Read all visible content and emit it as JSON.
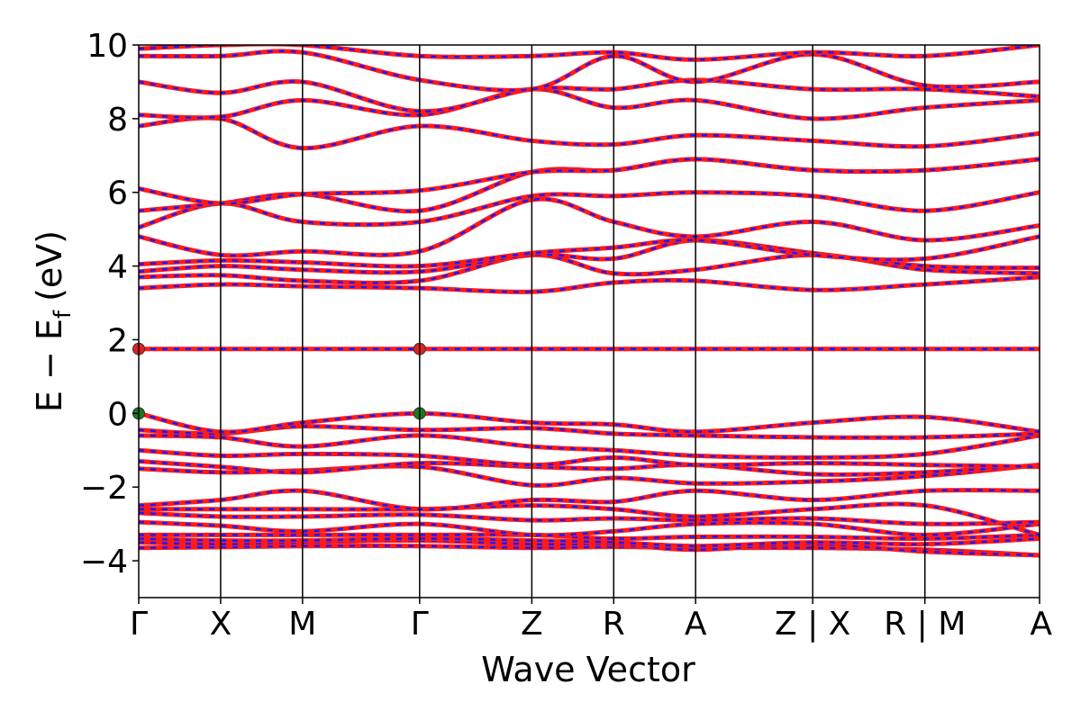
{
  "chart_data": {
    "type": "line",
    "title": "",
    "xlabel": "Wave Vector",
    "ylabel": "E − E",
    "ylabel_subscript": "f",
    "ylabel_unit": "(eV)",
    "ylim": [
      -5,
      10
    ],
    "yticks": [
      -4,
      -2,
      0,
      2,
      4,
      6,
      8,
      10
    ],
    "ytick_labels": [
      "−4",
      "−2",
      "0",
      "2",
      "4",
      "6",
      "8",
      "10"
    ],
    "xlim": [
      0,
      11
    ],
    "kpoints": [
      {
        "x": 0.0,
        "label": "Γ"
      },
      {
        "x": 1.0,
        "label": "X"
      },
      {
        "x": 2.0,
        "label": "M"
      },
      {
        "x": 3.43,
        "label": "Γ"
      },
      {
        "x": 4.8,
        "label": "Z"
      },
      {
        "x": 5.8,
        "label": "R"
      },
      {
        "x": 6.8,
        "label": "A"
      },
      {
        "x": 8.23,
        "label": "Z | X"
      },
      {
        "x": 9.6,
        "label": "R | M"
      },
      {
        "x": 11.0,
        "label": "A"
      }
    ],
    "bands": [
      [
        -3.65,
        -3.63,
        -3.6,
        -3.6,
        -3.65,
        -3.62,
        -3.65,
        -3.65,
        -3.7,
        -3.85
      ],
      [
        -3.5,
        -3.55,
        -3.5,
        -3.45,
        -3.55,
        -3.55,
        -3.7,
        -3.55,
        -3.75,
        -3.85
      ],
      [
        -3.4,
        -3.45,
        -3.45,
        -3.4,
        -3.45,
        -3.5,
        -3.6,
        -3.5,
        -3.55,
        -3.4
      ],
      [
        -3.3,
        -3.3,
        -3.3,
        -3.3,
        -3.3,
        -3.4,
        -3.35,
        -3.35,
        -3.4,
        -3.3
      ],
      [
        -2.95,
        -3.05,
        -3.2,
        -3.0,
        -3.3,
        -3.2,
        -3.0,
        -3.0,
        -3.3,
        -3.0
      ],
      [
        -2.7,
        -2.8,
        -2.8,
        -2.75,
        -2.9,
        -2.85,
        -2.9,
        -2.85,
        -3.0,
        -2.95
      ],
      [
        -2.6,
        -2.6,
        -2.6,
        -2.6,
        -2.5,
        -2.6,
        -2.8,
        -2.6,
        -2.5,
        -3.3
      ],
      [
        -2.5,
        -2.35,
        -2.1,
        -2.6,
        -2.35,
        -2.4,
        -2.1,
        -2.35,
        -2.1,
        -2.1
      ],
      [
        -1.5,
        -1.6,
        -1.55,
        -1.45,
        -1.95,
        -1.75,
        -1.9,
        -1.85,
        -1.7,
        -1.4
      ],
      [
        -1.3,
        -1.45,
        -1.6,
        -1.35,
        -1.45,
        -1.5,
        -1.4,
        -1.65,
        -1.6,
        -1.4
      ],
      [
        -1.0,
        -1.15,
        -1.1,
        -1.15,
        -1.4,
        -1.2,
        -1.4,
        -1.35,
        -1.4,
        -1.45
      ],
      [
        -0.6,
        -0.65,
        -0.9,
        -0.6,
        -0.9,
        -1.0,
        -1.15,
        -1.2,
        -1.1,
        -0.6
      ],
      [
        -0.45,
        -0.55,
        -0.35,
        -0.45,
        -0.4,
        -0.55,
        -0.6,
        -0.65,
        -0.65,
        -0.55
      ],
      [
        0.0,
        -0.5,
        -0.25,
        0.0,
        -0.25,
        -0.3,
        -0.5,
        -0.25,
        -0.1,
        -0.5
      ],
      [
        1.75,
        1.75,
        1.75,
        1.75,
        1.75,
        1.75,
        1.75,
        1.75,
        1.75,
        1.75
      ],
      [
        3.4,
        3.5,
        3.45,
        3.4,
        3.3,
        3.55,
        3.6,
        3.35,
        3.5,
        3.7
      ],
      [
        3.7,
        3.75,
        3.6,
        3.6,
        4.3,
        3.8,
        3.9,
        4.3,
        3.9,
        3.8
      ],
      [
        3.85,
        4.0,
        3.9,
        3.85,
        4.3,
        4.2,
        4.7,
        4.35,
        4.0,
        3.95
      ],
      [
        4.05,
        4.15,
        4.1,
        4.0,
        4.35,
        4.5,
        4.7,
        4.3,
        4.2,
        4.8
      ],
      [
        4.8,
        4.3,
        4.4,
        4.4,
        5.8,
        5.2,
        4.8,
        5.2,
        4.7,
        5.1
      ],
      [
        5.05,
        5.7,
        5.2,
        5.2,
        5.9,
        5.9,
        6.0,
        5.9,
        5.5,
        6.0
      ],
      [
        5.5,
        5.7,
        5.95,
        5.5,
        6.55,
        6.6,
        6.9,
        6.6,
        6.6,
        6.9
      ],
      [
        6.1,
        5.7,
        5.95,
        6.05,
        6.55,
        6.6,
        6.9,
        6.6,
        6.6,
        6.9
      ],
      [
        7.8,
        8.0,
        7.2,
        7.8,
        7.4,
        7.3,
        7.55,
        7.4,
        7.25,
        7.6
      ],
      [
        8.1,
        8.05,
        8.5,
        8.1,
        8.8,
        8.3,
        8.5,
        8.0,
        8.3,
        8.5
      ],
      [
        9.0,
        8.7,
        9.0,
        8.2,
        8.8,
        8.8,
        9.05,
        8.8,
        8.8,
        8.6
      ],
      [
        9.7,
        9.7,
        9.8,
        9.05,
        8.8,
        9.7,
        9.0,
        9.75,
        8.9,
        9.0
      ],
      [
        9.9,
        10.0,
        10.0,
        9.7,
        9.7,
        9.8,
        9.6,
        9.8,
        9.7,
        10.0
      ]
    ],
    "markers": [
      {
        "x": 0.0,
        "y": 1.75,
        "color": "#e02020"
      },
      {
        "x": 3.43,
        "y": 1.75,
        "color": "#e02020"
      },
      {
        "x": 0.0,
        "y": 0.0,
        "color": "#1a7a1a"
      },
      {
        "x": 3.43,
        "y": 0.0,
        "color": "#1a7a1a"
      }
    ],
    "colors": {
      "band_solid": "#ff1a1a",
      "band_dash": "#1a1aff",
      "axes": "#000000",
      "background": "#ffffff"
    },
    "grid": false,
    "legend": "none"
  }
}
